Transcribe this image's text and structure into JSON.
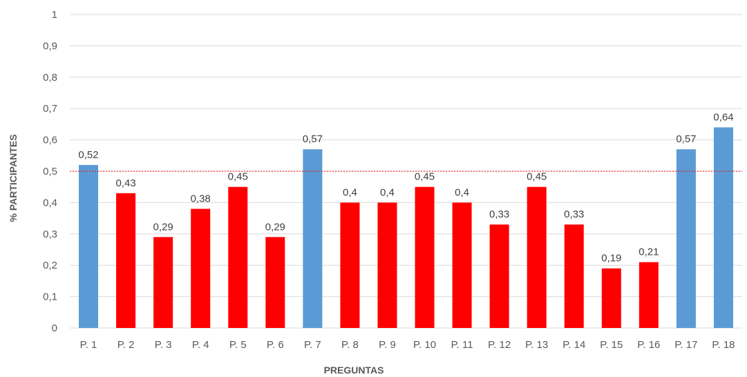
{
  "chart_data": {
    "type": "bar",
    "xlabel": "PREGUNTAS",
    "ylabel": "% PARTICIPANTES",
    "ylim": [
      0,
      1
    ],
    "yticks": [
      "0",
      "0,1",
      "0,2",
      "0,3",
      "0,4",
      "0,5",
      "0,6",
      "0,7",
      "0,8",
      "0,9",
      "1"
    ],
    "grid": true,
    "reference_line": 0.5,
    "categories": [
      "P. 1",
      "P. 2",
      "P. 3",
      "P. 4",
      "P. 5",
      "P. 6",
      "P. 7",
      "P. 8",
      "P. 9",
      "P. 10",
      "P. 11",
      "P. 12",
      "P. 13",
      "P. 14",
      "P. 15",
      "P. 16",
      "P. 17",
      "P. 18"
    ],
    "values": [
      0.52,
      0.43,
      0.29,
      0.38,
      0.45,
      0.29,
      0.57,
      0.4,
      0.4,
      0.45,
      0.4,
      0.33,
      0.45,
      0.33,
      0.19,
      0.21,
      0.57,
      0.64
    ],
    "value_labels": [
      "0,52",
      "0,43",
      "0,29",
      "0,38",
      "0,45",
      "0,29",
      "0,57",
      "0,4",
      "0,4",
      "0,45",
      "0,4",
      "0,33",
      "0,45",
      "0,33",
      "0,19",
      "0,21",
      "0,57",
      "0,64"
    ],
    "colors": {
      "above_reference": "#5b9bd5",
      "below_reference": "#ff0000",
      "reference_line": "#ff0000",
      "grid": "#d9d9d9"
    }
  }
}
